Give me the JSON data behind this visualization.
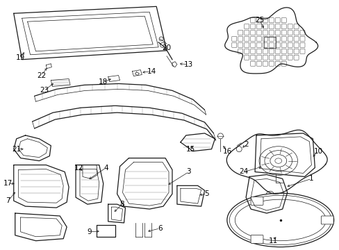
{
  "background_color": "#ffffff",
  "line_color": "#1a1a1a",
  "label_color": "#000000",
  "fig_width": 4.89,
  "fig_height": 3.6,
  "dpi": 100,
  "font_size": 7.5
}
